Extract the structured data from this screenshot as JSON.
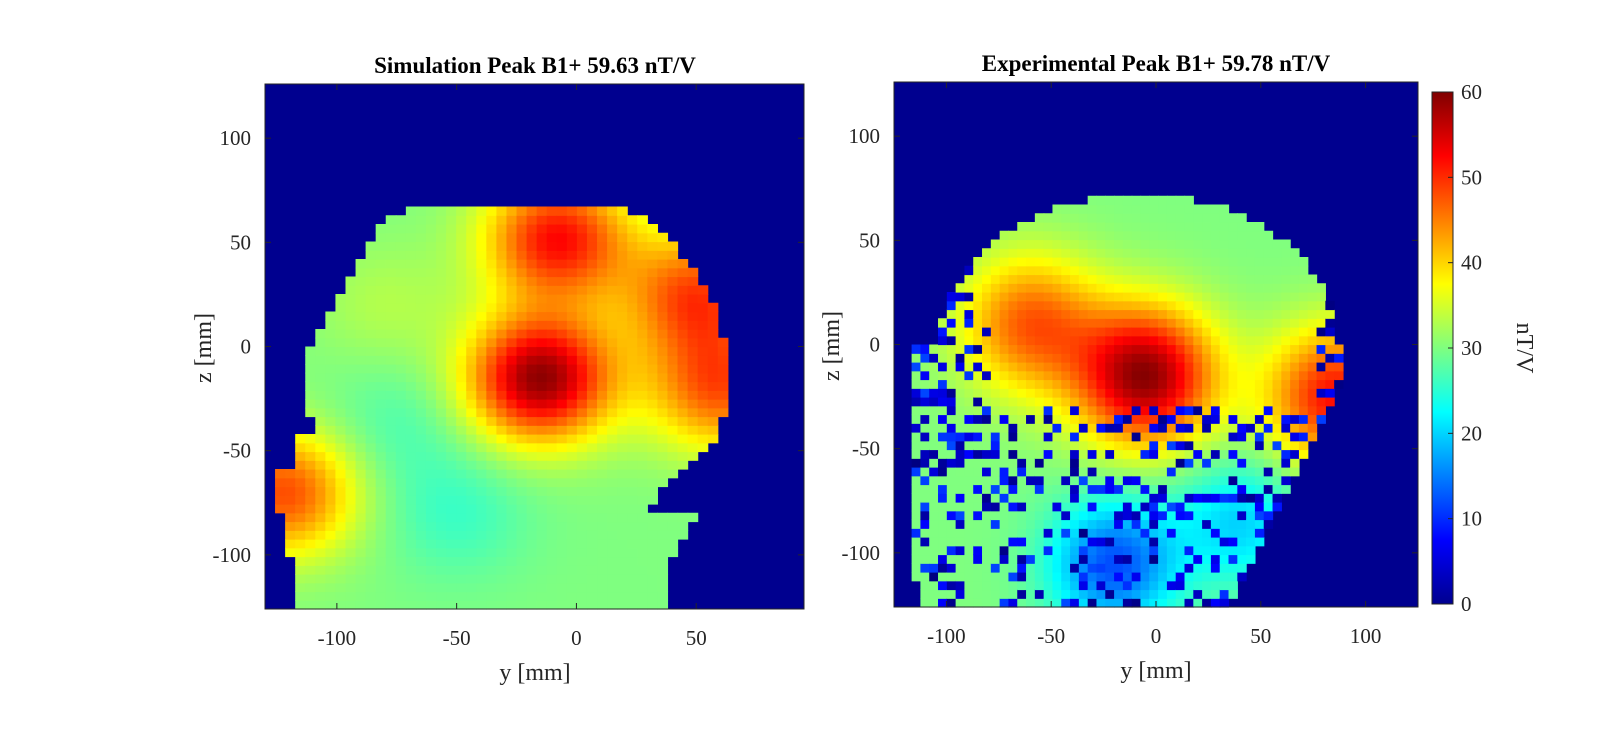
{
  "chart_data": [
    {
      "type": "heatmap",
      "title": "Simulation Peak B1+ 59.63 nT/V",
      "xlabel": "y [mm]",
      "ylabel": "z [mm]",
      "xlim": [
        -130,
        95
      ],
      "ylim": [
        -126,
        126
      ],
      "xticks": [
        -100,
        -50,
        0,
        50
      ],
      "yticks": [
        -100,
        -50,
        0,
        50,
        100
      ],
      "peak": 59.63,
      "hotspots": [
        {
          "y": -15,
          "z": -15,
          "value": 59
        },
        {
          "y": -8,
          "z": 52,
          "value": 52
        },
        {
          "y": 50,
          "z": 25,
          "value": 48
        },
        {
          "y": 60,
          "z": -20,
          "value": 47
        },
        {
          "y": -122,
          "z": -70,
          "value": 48
        }
      ],
      "coldspots": [
        {
          "y": -75,
          "z": -38,
          "value": 27
        },
        {
          "y": -50,
          "z": -80,
          "value": 26
        },
        {
          "y": -80,
          "z": 20,
          "value": 33
        }
      ],
      "background": 0
    },
    {
      "type": "heatmap",
      "title": "Experimental Peak B1+ 59.78 nT/V",
      "xlabel": "y [mm]",
      "ylabel": "z [mm]",
      "xlim": [
        -125,
        125
      ],
      "ylim": [
        -126,
        126
      ],
      "xticks": [
        -100,
        -50,
        0,
        50,
        100
      ],
      "yticks": [
        -100,
        -50,
        0,
        50,
        100
      ],
      "peak": 59.78,
      "hotspots": [
        {
          "y": -5,
          "z": -15,
          "value": 59
        },
        {
          "y": -60,
          "z": 10,
          "value": 47
        },
        {
          "y": 86,
          "z": -25,
          "value": 52
        }
      ],
      "coldspots": [
        {
          "y": 10,
          "z": 50,
          "value": 30
        },
        {
          "y": -20,
          "z": -105,
          "value": 12
        },
        {
          "y": 40,
          "z": -85,
          "value": 20
        }
      ],
      "background": 0
    }
  ],
  "colorbar": {
    "label": "nT/V",
    "min": 0,
    "max": 60,
    "ticks": [
      0,
      10,
      20,
      30,
      40,
      50,
      60
    ],
    "colormap": "jet"
  },
  "colors": {
    "background_dark": "#00008f",
    "axis": "#262626"
  }
}
